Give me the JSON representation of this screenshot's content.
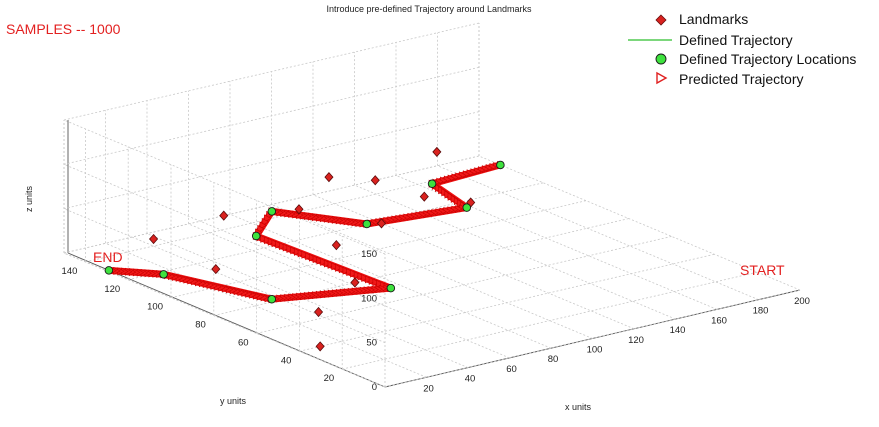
{
  "figure": {
    "title": "Introduce pre-defined Trajectory around Landmarks",
    "samples_label": "SAMPLES -- 1000",
    "start_label": "START",
    "end_label": "END"
  },
  "legend": [
    {
      "label": "Landmarks",
      "marker": "diamond",
      "color": "#d9221f"
    },
    {
      "label": "Defined Trajectory",
      "marker": "line",
      "color": "#2fbf2f"
    },
    {
      "label": "Defined Trajectory Locations",
      "marker": "circle",
      "color": "#3ee23e"
    },
    {
      "label": "Predicted Trajectory",
      "marker": "triangle-right",
      "color": "#e02020"
    }
  ],
  "colors": {
    "landmark": "#d9221f",
    "predicted": "#ee1111",
    "location": "#3ee23e",
    "grid": "#c8c8c8",
    "annotation": "#e32020"
  },
  "chart_data": {
    "type": "scatter",
    "projection": "3d",
    "title": "Introduce pre-defined Trajectory around Landmarks",
    "xlabel": "x units",
    "ylabel": "y units",
    "zlabel": "z units",
    "xlim": [
      0,
      200
    ],
    "ylim": [
      0,
      150
    ],
    "zlim": [
      0,
      150
    ],
    "grid": true,
    "legend_position": "top-right",
    "xticks": [
      "20",
      "40",
      "60",
      "80",
      "100",
      "120",
      "140",
      "160",
      "180",
      "200"
    ],
    "yticks": [
      "20",
      "40",
      "60",
      "80",
      "100",
      "120",
      "140"
    ],
    "zticks": [
      "0",
      "50",
      "100",
      "150"
    ],
    "series": [
      {
        "name": "Landmarks",
        "marker": "diamond",
        "points": [
          [
            10,
            40,
            0
          ],
          [
            38,
            145,
            0
          ],
          [
            35,
            113,
            0
          ],
          [
            35,
            65,
            0
          ],
          [
            68,
            80,
            0
          ],
          [
            77,
            150,
            0
          ],
          [
            105,
            142,
            0
          ],
          [
            90,
            110,
            0
          ],
          [
            120,
            118,
            0
          ],
          [
            138,
            160,
            0
          ],
          [
            150,
            150,
            0
          ],
          [
            153,
            130,
            0
          ],
          [
            163,
            118,
            0
          ],
          [
            190,
            160,
            0
          ]
        ]
      },
      {
        "name": "Defined Trajectory Locations",
        "marker": "circle",
        "points": [
          [
            1,
            130,
            0
          ],
          [
            15,
            118,
            0
          ],
          [
            30,
            82,
            0
          ],
          [
            75,
            70,
            0
          ],
          [
            72,
            130,
            0
          ],
          [
            95,
            145,
            0
          ],
          [
            115,
            120,
            0
          ],
          [
            158,
            115,
            0
          ],
          [
            165,
            138,
            0
          ],
          [
            200,
            140,
            0
          ]
        ]
      },
      {
        "name": "Predicted Trajectory",
        "marker": "triangle-right",
        "order": "START to END",
        "points": [
          [
            200,
            140,
            0
          ],
          [
            165,
            138,
            0
          ],
          [
            158,
            115,
            0
          ],
          [
            115,
            120,
            0
          ],
          [
            95,
            145,
            0
          ],
          [
            72,
            130,
            0
          ],
          [
            75,
            70,
            0
          ],
          [
            30,
            82,
            0
          ],
          [
            15,
            118,
            0
          ],
          [
            1,
            130,
            0
          ]
        ]
      }
    ]
  }
}
